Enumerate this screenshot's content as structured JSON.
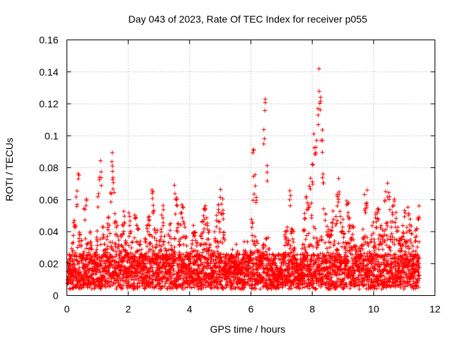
{
  "chart_data": {
    "type": "scatter",
    "title": "Day 043 of 2023, Rate Of TEC Index for receiver p055",
    "xlabel": "GPS time / hours",
    "ylabel": "ROTI / TECUs",
    "xlim": [
      0,
      12
    ],
    "ylim": [
      0,
      0.16
    ],
    "xticks": [
      0,
      2,
      4,
      6,
      8,
      10,
      12
    ],
    "xtick_labels": [
      "0",
      "2",
      "4",
      "6",
      "8",
      "10",
      "12"
    ],
    "yticks": [
      0,
      0.02,
      0.04,
      0.06,
      0.08,
      0.1,
      0.12,
      0.14,
      0.16
    ],
    "ytick_labels": [
      "0",
      "0.02",
      "0.04",
      "0.06",
      "0.08",
      "0.1",
      "0.12",
      "0.14",
      "0.16"
    ],
    "grid": true,
    "marker": "+",
    "series": [
      {
        "name": "ROTI",
        "color": "#ff0000",
        "x": [
          0.0,
          0.05,
          0.1,
          0.15,
          0.2,
          0.25,
          0.3,
          0.35,
          0.4,
          0.45,
          0.5,
          0.55,
          0.6,
          0.65,
          0.7,
          0.75,
          0.8,
          0.85,
          0.9,
          0.95,
          1.0,
          1.05,
          1.1,
          1.15,
          1.2,
          1.25,
          1.3,
          1.35,
          1.4,
          1.45,
          1.5,
          1.55,
          1.6,
          1.65,
          1.7,
          1.75,
          1.8,
          1.85,
          1.9,
          1.95,
          2.0,
          2.05,
          2.1,
          2.15,
          2.2,
          2.25,
          2.3,
          2.35,
          2.4,
          2.45,
          2.5,
          2.55,
          2.6,
          2.65,
          2.7,
          2.75,
          2.8,
          2.85,
          2.9,
          2.95,
          3.0,
          3.05,
          3.1,
          3.15,
          3.2,
          3.25,
          3.3,
          3.35,
          3.4,
          3.45,
          3.5,
          3.55,
          3.6,
          3.65,
          3.7,
          3.75,
          3.8,
          3.85,
          3.9,
          3.95,
          4.0,
          4.05,
          4.1,
          4.15,
          4.2,
          4.25,
          4.3,
          4.35,
          4.4,
          4.45,
          4.5,
          4.55,
          4.6,
          4.65,
          4.7,
          4.75,
          4.8,
          4.85,
          4.9,
          4.95,
          5.0,
          5.05,
          5.1,
          5.15,
          5.2,
          5.25,
          5.3,
          5.35,
          5.4,
          5.45,
          5.5,
          5.55,
          5.6,
          5.65,
          5.7,
          5.75,
          5.8,
          5.85,
          5.9,
          5.95,
          6.0,
          6.05,
          6.1,
          6.15,
          6.2,
          6.25,
          6.3,
          6.35,
          6.4,
          6.45,
          6.5,
          6.55,
          6.6,
          6.65,
          6.7,
          6.75,
          6.8,
          6.85,
          6.9,
          6.95,
          7.0,
          7.05,
          7.1,
          7.15,
          7.2,
          7.25,
          7.3,
          7.35,
          7.4,
          7.45,
          7.5,
          7.55,
          7.6,
          7.65,
          7.7,
          7.75,
          7.8,
          7.85,
          7.9,
          7.95,
          8.0,
          8.05,
          8.1,
          8.15,
          8.2,
          8.25,
          8.3,
          8.35,
          8.4,
          8.45,
          8.5,
          8.55,
          8.6,
          8.65,
          8.7,
          8.75,
          8.8,
          8.85,
          8.9,
          8.95,
          9.0,
          9.05,
          9.1,
          9.15,
          9.2,
          9.25,
          9.3,
          9.35,
          9.4,
          9.45,
          9.5,
          9.55,
          9.6,
          9.65,
          9.7,
          9.75,
          9.8,
          9.85,
          9.9,
          9.95,
          10.0,
          10.05,
          10.1,
          10.15,
          10.2,
          10.25,
          10.3,
          10.35,
          10.4,
          10.45,
          10.5,
          10.55,
          10.6,
          10.65,
          10.7,
          10.75,
          10.8,
          10.85,
          10.9,
          10.95,
          11.0,
          11.05,
          11.1,
          11.15,
          11.2,
          11.25,
          11.3,
          11.35,
          11.4,
          11.45
        ],
        "y": [
          0.011,
          0.02,
          0.016,
          0.03,
          0.051,
          0.046,
          0.068,
          0.08,
          0.041,
          0.036,
          0.028,
          0.056,
          0.063,
          0.033,
          0.024,
          0.041,
          0.03,
          0.022,
          0.029,
          0.041,
          0.066,
          0.085,
          0.078,
          0.043,
          0.037,
          0.03,
          0.046,
          0.053,
          0.065,
          0.087,
          0.078,
          0.054,
          0.047,
          0.036,
          0.029,
          0.032,
          0.046,
          0.053,
          0.037,
          0.03,
          0.052,
          0.046,
          0.036,
          0.026,
          0.057,
          0.05,
          0.044,
          0.036,
          0.029,
          0.024,
          0.026,
          0.038,
          0.048,
          0.052,
          0.039,
          0.067,
          0.06,
          0.043,
          0.035,
          0.027,
          0.035,
          0.045,
          0.054,
          0.04,
          0.031,
          0.024,
          0.04,
          0.047,
          0.034,
          0.028,
          0.072,
          0.063,
          0.048,
          0.037,
          0.052,
          0.059,
          0.049,
          0.038,
          0.029,
          0.024,
          0.027,
          0.033,
          0.045,
          0.04,
          0.034,
          0.028,
          0.026,
          0.038,
          0.047,
          0.058,
          0.06,
          0.05,
          0.041,
          0.036,
          0.029,
          0.03,
          0.04,
          0.051,
          0.057,
          0.049,
          0.062,
          0.056,
          0.041,
          0.021,
          0.013,
          0.018,
          0.025,
          0.029,
          0.024,
          0.019,
          0.027,
          0.03,
          0.022,
          0.016,
          0.024,
          0.029,
          0.031,
          0.028,
          0.022,
          0.026,
          0.051,
          0.098,
          0.077,
          0.065,
          0.03,
          0.023,
          0.026,
          0.032,
          0.108,
          0.124,
          0.087,
          0.031,
          0.02,
          0.018,
          0.015,
          0.012,
          0.011,
          0.01,
          0.014,
          0.017,
          0.015,
          0.027,
          0.039,
          0.044,
          0.036,
          0.064,
          0.048,
          0.042,
          0.031,
          0.023,
          0.016,
          0.013,
          0.017,
          0.032,
          0.046,
          0.058,
          0.062,
          0.065,
          0.074,
          0.058,
          0.082,
          0.105,
          0.097,
          0.126,
          0.145,
          0.136,
          0.105,
          0.082,
          0.056,
          0.046,
          0.04,
          0.038,
          0.048,
          0.049,
          0.036,
          0.05,
          0.065,
          0.073,
          0.055,
          0.048,
          0.044,
          0.034,
          0.061,
          0.055,
          0.049,
          0.039,
          0.044,
          0.034,
          0.031,
          0.028,
          0.025,
          0.03,
          0.034,
          0.038,
          0.063,
          0.06,
          0.034,
          0.028,
          0.04,
          0.046,
          0.034,
          0.051,
          0.057,
          0.056,
          0.045,
          0.038,
          0.043,
          0.067,
          0.048,
          0.072,
          0.062,
          0.047,
          0.058,
          0.061,
          0.052,
          0.043,
          0.035,
          0.033,
          0.041,
          0.045,
          0.054,
          0.04,
          0.057,
          0.049,
          0.039,
          0.033,
          0.027,
          0.04,
          0.05,
          0.056
        ]
      }
    ]
  }
}
